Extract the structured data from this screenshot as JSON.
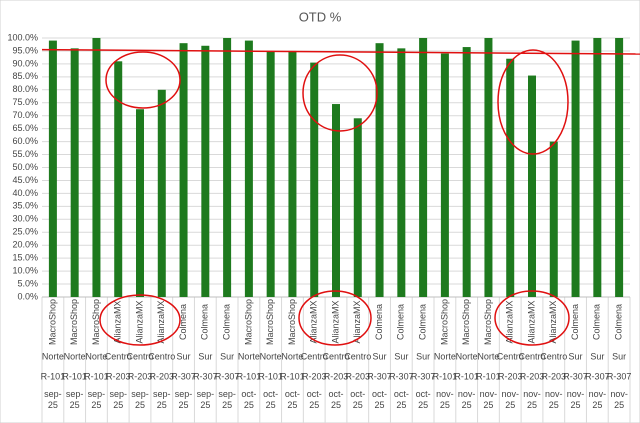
{
  "chart_data": {
    "type": "bar",
    "title": "OTD %",
    "categories": {
      "customer": [
        "MacroShop",
        "MacroShop",
        "MacroShop",
        "AlianzaMX",
        "AlianzaMX",
        "AlianzaMX",
        "Colmena",
        "Colmena",
        "Colmena",
        "MacroShop",
        "MacroShop",
        "MacroShop",
        "AlianzaMX",
        "AlianzaMX",
        "AlianzaMX",
        "Colmena",
        "Colmena",
        "Colmena",
        "MacroShop",
        "MacroShop",
        "MacroShop",
        "AlianzaMX",
        "AlianzaMX",
        "AlianzaMX",
        "Colmena",
        "Colmena",
        "Colmena"
      ],
      "region": [
        "Norte",
        "Norte",
        "Norte",
        "Centro",
        "Centro",
        "Centro",
        "Sur",
        "Sur",
        "Sur",
        "Norte",
        "Norte",
        "Norte",
        "Centro",
        "Centro",
        "Centro",
        "Sur",
        "Sur",
        "Sur",
        "Norte",
        "Norte",
        "Norte",
        "Centro",
        "Centro",
        "Centro",
        "Sur",
        "Sur",
        "Sur"
      ],
      "route": [
        "R-101",
        "R-101",
        "R-101",
        "R-203",
        "R-203",
        "R-203",
        "R-307",
        "R-307",
        "R-307",
        "R-101",
        "R-101",
        "R-101",
        "R-203",
        "R-203",
        "R-203",
        "R-307",
        "R-307",
        "R-307",
        "R-101",
        "R-101",
        "R-101",
        "R-203",
        "R-203",
        "R-203",
        "R-307",
        "R-307",
        "R-307"
      ],
      "month": [
        "sep-25",
        "sep-25",
        "sep-25",
        "sep-25",
        "sep-25",
        "sep-25",
        "sep-25",
        "sep-25",
        "sep-25",
        "oct-25",
        "oct-25",
        "oct-25",
        "oct-25",
        "oct-25",
        "oct-25",
        "oct-25",
        "oct-25",
        "oct-25",
        "nov-25",
        "nov-25",
        "nov-25",
        "nov-25",
        "nov-25",
        "nov-25",
        "nov-25",
        "nov-25",
        "nov-25"
      ]
    },
    "values": [
      99,
      96,
      100,
      91,
      72.5,
      80,
      98,
      97,
      100,
      99,
      95,
      95,
      90.5,
      74.5,
      69,
      98,
      96,
      100,
      94,
      96.5,
      100,
      92,
      85.5,
      60,
      99,
      100,
      100
    ],
    "color": "#1e7a1e",
    "reference_line": {
      "color": "#e01010",
      "values": [
        95.5,
        93.8
      ]
    },
    "ylim": [
      0,
      100
    ],
    "yticks": [
      {
        "value": 0,
        "label": "0.0%"
      },
      {
        "value": 5,
        "label": "5.0%"
      },
      {
        "value": 10,
        "label": "10.0%"
      },
      {
        "value": 15,
        "label": "15.0%"
      },
      {
        "value": 20,
        "label": "20.0%"
      },
      {
        "value": 25,
        "label": "25.0%"
      },
      {
        "value": 30,
        "label": "30.0%"
      },
      {
        "value": 35,
        "label": "35.0%"
      },
      {
        "value": 40,
        "label": "40.0%"
      },
      {
        "value": 45,
        "label": "45.0%"
      },
      {
        "value": 50,
        "label": "50.0%"
      },
      {
        "value": 55,
        "label": "55.0%"
      },
      {
        "value": 60,
        "label": "60.0%"
      },
      {
        "value": 65,
        "label": "65.0%"
      },
      {
        "value": 70,
        "label": "70.0%"
      },
      {
        "value": 75,
        "label": "75.0%"
      },
      {
        "value": 80,
        "label": "80.0%"
      },
      {
        "value": 85,
        "label": "85.0%"
      },
      {
        "value": 90,
        "label": "90.0%"
      },
      {
        "value": 95,
        "label": "95.0%"
      },
      {
        "value": 100,
        "label": "100.0%"
      }
    ],
    "grid": true
  }
}
